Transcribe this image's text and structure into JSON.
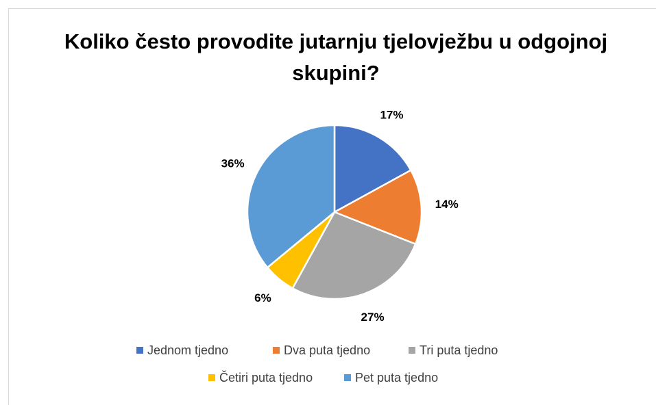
{
  "chart_data": {
    "type": "pie",
    "title": "Koliko često provodite jutarnju tjelovježbu u odgojnoj skupini?",
    "categories": [
      "Jednom tjedno",
      "Dva puta tjedno",
      "Tri puta tjedno",
      "Četiri puta tjedno",
      "Pet puta tjedno"
    ],
    "values": [
      17,
      14,
      27,
      6,
      36
    ],
    "value_labels": [
      "17%",
      "14%",
      "27%",
      "6%",
      "36%"
    ],
    "colors": [
      "#4472c4",
      "#ed7d31",
      "#a5a5a5",
      "#ffc000",
      "#5b9bd5"
    ],
    "legend": "bottom"
  }
}
